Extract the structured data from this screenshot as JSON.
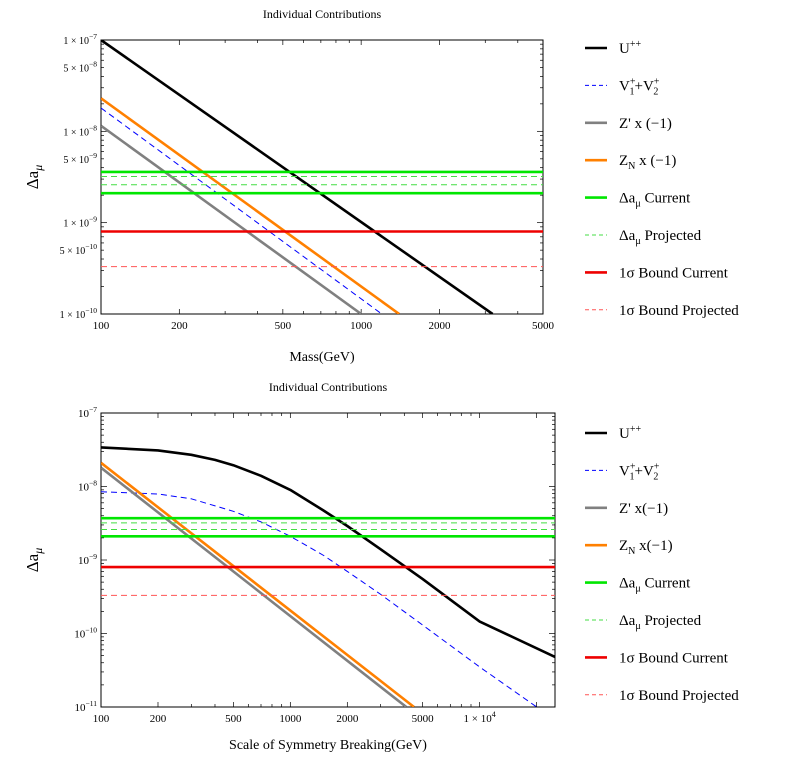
{
  "chart_data": [
    {
      "type": "line",
      "title": "Individual Contributions",
      "xlabel": "Mass(GeV)",
      "ylabel": "Δa_μ",
      "xscale": "log",
      "yscale": "log",
      "xlim": [
        100,
        5000
      ],
      "ylim": [
        1e-10,
        1e-07
      ],
      "grid": false,
      "legend_position": "right",
      "x_ticks": [
        {
          "v": 100,
          "label": "100"
        },
        {
          "v": 200,
          "label": "200"
        },
        {
          "v": 500,
          "label": "500"
        },
        {
          "v": 1000,
          "label": "1000"
        },
        {
          "v": 2000,
          "label": "2000"
        },
        {
          "v": 5000,
          "label": "5000"
        }
      ],
      "y_ticks": [
        {
          "v": 1e-10,
          "base": "1 × 10",
          "exp": "−10"
        },
        {
          "v": 5e-10,
          "base": "5 × 10",
          "exp": "−10"
        },
        {
          "v": 1e-09,
          "base": "1 × 10",
          "exp": "−9"
        },
        {
          "v": 5e-09,
          "base": "5 × 10",
          "exp": "−9"
        },
        {
          "v": 1e-08,
          "base": "1 × 10",
          "exp": "−8"
        },
        {
          "v": 5e-08,
          "base": "5 × 10",
          "exp": "−8"
        },
        {
          "v": 1e-07,
          "base": "1 × 10",
          "exp": "−7"
        }
      ],
      "series": [
        {
          "name": "U++",
          "color": "#000000",
          "style": "solid",
          "points": [
            [
              100,
              1e-07
            ],
            [
              3200,
              1e-10
            ]
          ]
        },
        {
          "name": "V1+ + V2+",
          "color": "#0000ff",
          "style": "dashed",
          "points": [
            [
              100,
              1.8e-08
            ],
            [
              1200,
              1e-10
            ]
          ]
        },
        {
          "name": "Z' x (-1)",
          "color": "#808080",
          "style": "solid",
          "points": [
            [
              100,
              1.15e-08
            ],
            [
              1000,
              1e-10
            ]
          ]
        },
        {
          "name": "Z_N x (-1)",
          "color": "#ff8000",
          "style": "solid",
          "points": [
            [
              100,
              2.3e-08
            ],
            [
              1400,
              1e-10
            ]
          ]
        },
        {
          "name": "Δa_μ Current",
          "color": "#00e600",
          "style": "solid",
          "points": [
            [
              100,
              3.6e-09
            ],
            [
              5000,
              3.6e-09
            ]
          ]
        },
        {
          "name": "Δa_μ Current",
          "color": "#00e600",
          "style": "solid",
          "points": [
            [
              100,
              2.1e-09
            ],
            [
              5000,
              2.1e-09
            ]
          ]
        },
        {
          "name": "Δa_μ Projected",
          "color": "#44dd44",
          "style": "dashed",
          "points": [
            [
              100,
              3.2e-09
            ],
            [
              5000,
              3.2e-09
            ]
          ]
        },
        {
          "name": "Δa_μ Projected",
          "color": "#44dd44",
          "style": "dashed",
          "points": [
            [
              100,
              2.6e-09
            ],
            [
              5000,
              2.6e-09
            ]
          ]
        },
        {
          "name": "1σ Bound Current",
          "color": "#ee0000",
          "style": "solid",
          "points": [
            [
              100,
              8e-10
            ],
            [
              5000,
              8e-10
            ]
          ]
        },
        {
          "name": "1σ Bound Projected",
          "color": "#ff5555",
          "style": "dashed",
          "points": [
            [
              100,
              3.3e-10
            ],
            [
              5000,
              3.3e-10
            ]
          ]
        }
      ]
    },
    {
      "type": "line",
      "title": "Individual Contributions",
      "xlabel": "Scale of Symmetry Breaking(GeV)",
      "ylabel": "Δa_μ",
      "xscale": "log",
      "yscale": "log",
      "xlim": [
        100,
        25000
      ],
      "ylim": [
        1e-11,
        1e-07
      ],
      "grid": false,
      "legend_position": "right",
      "x_ticks": [
        {
          "v": 100,
          "label": "100"
        },
        {
          "v": 200,
          "label": "200"
        },
        {
          "v": 500,
          "label": "500"
        },
        {
          "v": 1000,
          "label": "1000"
        },
        {
          "v": 2000,
          "label": "2000"
        },
        {
          "v": 5000,
          "label": "5000"
        },
        {
          "v": 10000,
          "label": "1 × 10",
          "exp": "4"
        }
      ],
      "y_ticks": [
        {
          "v": 1e-11,
          "base": "10",
          "exp": "−11"
        },
        {
          "v": 1e-10,
          "base": "10",
          "exp": "−10"
        },
        {
          "v": 1e-09,
          "base": "10",
          "exp": "−9"
        },
        {
          "v": 1e-08,
          "base": "10",
          "exp": "−8"
        },
        {
          "v": 1e-07,
          "base": "10",
          "exp": "−7"
        }
      ],
      "series": [
        {
          "name": "U++",
          "color": "#000000",
          "style": "solid",
          "points": [
            [
              100,
              3.4e-08
            ],
            [
              200,
              3.1e-08
            ],
            [
              300,
              2.7e-08
            ],
            [
              400,
              2.3e-08
            ],
            [
              500,
              1.95e-08
            ],
            [
              700,
              1.4e-08
            ],
            [
              1000,
              9e-09
            ],
            [
              1500,
              4.7e-09
            ],
            [
              2000,
              2.9e-09
            ],
            [
              3000,
              1.4e-09
            ],
            [
              5000,
              5.5e-10
            ],
            [
              10000,
              1.45e-10
            ],
            [
              25000,
              4.8e-11
            ]
          ]
        },
        {
          "name": "V1+ + V2+",
          "color": "#0000ff",
          "style": "dashed",
          "points": [
            [
              100,
              8.5e-09
            ],
            [
              200,
              7.9e-09
            ],
            [
              300,
              6.8e-09
            ],
            [
              500,
              4.6e-09
            ],
            [
              700,
              3.3e-09
            ],
            [
              1000,
              2.1e-09
            ],
            [
              1500,
              1.15e-09
            ],
            [
              2000,
              7e-10
            ],
            [
              3000,
              3.4e-10
            ],
            [
              5000,
              1.3e-10
            ],
            [
              10000,
              3.5e-11
            ],
            [
              20000,
              1e-11
            ]
          ]
        },
        {
          "name": "Z' x(-1)",
          "color": "#808080",
          "style": "solid",
          "points": [
            [
              100,
              1.8e-08
            ],
            [
              4100,
              1e-11
            ]
          ]
        },
        {
          "name": "Z_N x(-1)",
          "color": "#ff8000",
          "style": "solid",
          "points": [
            [
              100,
              2.1e-08
            ],
            [
              4500,
              1e-11
            ]
          ]
        },
        {
          "name": "Δa_μ Current",
          "color": "#00e600",
          "style": "solid",
          "points": [
            [
              100,
              3.7e-09
            ],
            [
              25000,
              3.7e-09
            ]
          ]
        },
        {
          "name": "Δa_μ Current",
          "color": "#00e600",
          "style": "solid",
          "points": [
            [
              100,
              2.1e-09
            ],
            [
              25000,
              2.1e-09
            ]
          ]
        },
        {
          "name": "Δa_μ Projected",
          "color": "#44dd44",
          "style": "dashed",
          "points": [
            [
              100,
              3.2e-09
            ],
            [
              25000,
              3.2e-09
            ]
          ]
        },
        {
          "name": "Δa_μ Projected",
          "color": "#44dd44",
          "style": "dashed",
          "points": [
            [
              100,
              2.6e-09
            ],
            [
              25000,
              2.6e-09
            ]
          ]
        },
        {
          "name": "1σ Bound Current",
          "color": "#ee0000",
          "style": "solid",
          "points": [
            [
              100,
              8e-10
            ],
            [
              25000,
              8e-10
            ]
          ]
        },
        {
          "name": "1σ Bound Projected",
          "color": "#ff5555",
          "style": "dashed",
          "points": [
            [
              100,
              3.3e-10
            ],
            [
              25000,
              3.3e-10
            ]
          ]
        }
      ]
    }
  ],
  "legends": [
    {
      "items": [
        {
          "base": "U",
          "sup": "++",
          "rest": "",
          "color": "#000000",
          "style": "solid"
        },
        {
          "base": "V",
          "sup": "+",
          "sub": "1",
          "plus": "+V",
          "sup2": "+",
          "sub2": "2",
          "rest": "",
          "color": "#0000ff",
          "style": "dashed"
        },
        {
          "base": "Z' x (−1)",
          "rest": "",
          "color": "#808080",
          "style": "solid"
        },
        {
          "base": "Z",
          "sub": "N",
          "rest": " x (−1)",
          "color": "#ff8000",
          "style": "solid"
        },
        {
          "base": "Δa",
          "sub": "μ",
          "rest": " Current",
          "color": "#00e600",
          "style": "solid"
        },
        {
          "base": "Δa",
          "sub": "μ",
          "rest": " Projected",
          "color": "#44dd44",
          "style": "dashed"
        },
        {
          "base": "1σ Bound Current",
          "rest": "",
          "color": "#ee0000",
          "style": "solid"
        },
        {
          "base": "1σ Bound Projected",
          "rest": "",
          "color": "#ff5555",
          "style": "dashed"
        }
      ]
    },
    {
      "items": [
        {
          "base": "U",
          "sup": "++",
          "rest": "",
          "color": "#000000",
          "style": "solid"
        },
        {
          "base": "V",
          "sup": "+",
          "sub": "1",
          "plus": "+V",
          "sup2": "+",
          "sub2": "2",
          "rest": "",
          "color": "#0000ff",
          "style": "dashed"
        },
        {
          "base": "Z' x(−1)",
          "rest": "",
          "color": "#808080",
          "style": "solid"
        },
        {
          "base": "Z",
          "sub": "N",
          "rest": " x(−1)",
          "color": "#ff8000",
          "style": "solid"
        },
        {
          "base": "Δa",
          "sub": "μ",
          "rest": " Current",
          "color": "#00e600",
          "style": "solid"
        },
        {
          "base": "Δa",
          "sub": "μ",
          "rest": " Projected",
          "color": "#44dd44",
          "style": "dashed"
        },
        {
          "base": "1σ Bound Current",
          "rest": "",
          "color": "#ee0000",
          "style": "solid"
        },
        {
          "base": "1σ Bound Projected",
          "rest": "",
          "color": "#ff5555",
          "style": "dashed"
        }
      ]
    }
  ]
}
